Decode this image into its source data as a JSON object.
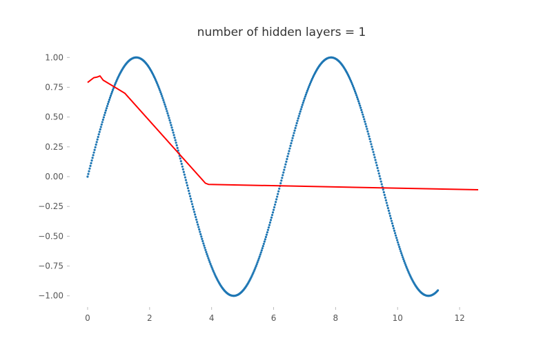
{
  "chart_data": {
    "type": "scatter",
    "title": "number of hidden layers = 1",
    "xlabel": "",
    "ylabel": "",
    "xlim": [
      -0.6,
      13.2
    ],
    "ylim": [
      -1.1,
      1.1
    ],
    "x_ticks": [
      0,
      2,
      4,
      6,
      8,
      10,
      12
    ],
    "y_ticks": [
      1.0,
      0.75,
      0.5,
      0.25,
      0.0,
      -0.25,
      -0.5,
      -0.75,
      -1.0
    ],
    "x_tick_labels": [
      "0",
      "2",
      "4",
      "6",
      "8",
      "10",
      "12"
    ],
    "y_tick_labels": [
      "1.00",
      "0.75",
      "0.50",
      "0.25",
      "0.00",
      "−0.25",
      "−0.50",
      "−0.75",
      "−1.00"
    ],
    "grid": false,
    "series": [
      {
        "kind": "scatter",
        "function": "sin",
        "x_start": 0,
        "x_end": 11.3,
        "points": 500,
        "color": "#1f77b4"
      },
      {
        "kind": "line",
        "color": "#ff0000",
        "x": [
          0,
          0.1,
          0.2,
          0.3,
          0.4,
          0.5,
          1.2,
          3.8,
          3.9,
          12.6
        ],
        "y": [
          0.79,
          0.81,
          0.83,
          0.835,
          0.845,
          0.81,
          0.7,
          -0.055,
          -0.065,
          -0.11
        ]
      }
    ]
  }
}
